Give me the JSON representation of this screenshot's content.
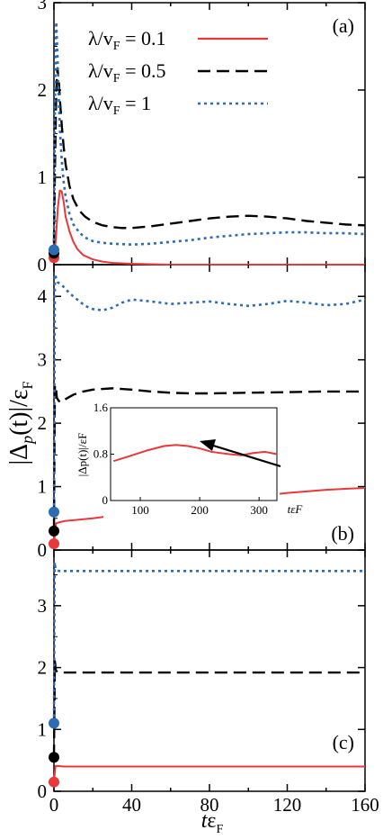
{
  "figure": {
    "ylabel_main": "|Δ",
    "ylabel_sub": "p",
    "ylabel_paren": "(t)|/ε",
    "ylabel_F": "F",
    "xlabel_t": "t",
    "xlabel_eps": "ε",
    "xlabel_F": "F"
  },
  "legend": {
    "items": [
      {
        "prefix": "λ/v",
        "sub": "F",
        "suffix": " = 0.1",
        "color": "#e8383a",
        "dash": "solid"
      },
      {
        "prefix": "λ/v",
        "sub": "F",
        "suffix": " = 0.5",
        "color": "#000000",
        "dash": "dashed"
      },
      {
        "prefix": "λ/v",
        "sub": "F",
        "suffix": " = 1",
        "color": "#2d6cb3",
        "dash": "dotted"
      }
    ]
  },
  "chart_data": [
    {
      "type": "line",
      "panel_label": "(a)",
      "xlim": [
        0,
        160
      ],
      "ylim": [
        0,
        3
      ],
      "yticks": [
        "0",
        "1",
        "2",
        "3"
      ],
      "series": [
        {
          "name": "λ/vF = 0.1",
          "color": "#e8383a",
          "dash": "solid",
          "x": [
            0,
            1,
            2,
            3,
            4,
            5,
            6,
            8,
            10,
            12,
            15,
            20,
            25,
            30,
            40,
            60,
            160
          ],
          "y": [
            0.05,
            0.3,
            0.65,
            0.85,
            0.84,
            0.72,
            0.55,
            0.38,
            0.26,
            0.18,
            0.11,
            0.06,
            0.035,
            0.02,
            0.01,
            0.0,
            0.0
          ]
        },
        {
          "name": "λ/vF = 0.5",
          "color": "#000000",
          "dash": "dashed",
          "x": [
            0,
            0.6,
            1.2,
            1.8,
            2.5,
            3.2,
            4,
            5,
            6,
            8,
            10,
            13,
            16,
            20,
            25,
            30,
            35,
            40,
            50,
            60,
            70,
            80,
            90,
            100,
            110,
            120,
            130,
            140,
            150,
            160
          ],
          "y": [
            0.25,
            1.2,
            2.0,
            2.25,
            2.1,
            1.85,
            1.6,
            1.35,
            1.15,
            0.9,
            0.75,
            0.62,
            0.55,
            0.49,
            0.45,
            0.43,
            0.42,
            0.42,
            0.44,
            0.47,
            0.5,
            0.53,
            0.55,
            0.56,
            0.55,
            0.53,
            0.5,
            0.48,
            0.46,
            0.45
          ]
        },
        {
          "name": "λ/vF = 1",
          "color": "#2d6cb3",
          "dash": "dotted",
          "x": [
            0,
            0.4,
            0.8,
            1.2,
            1.8,
            2.5,
            3.2,
            4,
            5,
            6,
            8,
            10,
            13,
            16,
            20,
            25,
            30,
            40,
            50,
            60,
            70,
            80,
            90,
            100,
            110,
            120,
            130,
            140,
            150,
            160
          ],
          "y": [
            0.2,
            1.5,
            2.5,
            2.78,
            2.4,
            1.9,
            1.5,
            1.2,
            0.95,
            0.78,
            0.58,
            0.46,
            0.37,
            0.31,
            0.27,
            0.25,
            0.24,
            0.23,
            0.24,
            0.26,
            0.28,
            0.31,
            0.33,
            0.35,
            0.36,
            0.37,
            0.37,
            0.36,
            0.36,
            0.35
          ]
        }
      ],
      "markers": [
        {
          "color": "#e8383a",
          "y": 0.08
        },
        {
          "color": "#000000",
          "y": 0.13
        },
        {
          "color": "#2d6cb3",
          "y": 0.17
        }
      ]
    },
    {
      "type": "line",
      "panel_label": "(b)",
      "xlim": [
        0,
        160
      ],
      "ylim": [
        0,
        4.5
      ],
      "yticks": [
        "0",
        "1",
        "2",
        "3",
        "4"
      ],
      "series": [
        {
          "name": "λ/vF = 0.1",
          "color": "#e8383a",
          "dash": "solid",
          "x": [
            0,
            1,
            3,
            6,
            10,
            20,
            40,
            60,
            80,
            100,
            120,
            140,
            160
          ],
          "y": [
            0.1,
            0.42,
            0.44,
            0.46,
            0.47,
            0.5,
            0.58,
            0.66,
            0.75,
            0.83,
            0.9,
            0.95,
            0.98
          ]
        },
        {
          "name": "λ/vF = 0.5",
          "color": "#000000",
          "dash": "dashed",
          "x": [
            0,
            0.5,
            1,
            1.5,
            2.5,
            4,
            6,
            10,
            15,
            20,
            30,
            40,
            50,
            60,
            70,
            80,
            100,
            120,
            140,
            160
          ],
          "y": [
            0.3,
            2.6,
            2.55,
            2.4,
            2.35,
            2.33,
            2.38,
            2.45,
            2.5,
            2.53,
            2.55,
            2.53,
            2.5,
            2.48,
            2.47,
            2.47,
            2.48,
            2.49,
            2.5,
            2.5
          ]
        },
        {
          "name": "λ/vF = 1",
          "color": "#2d6cb3",
          "dash": "dotted",
          "x": [
            0,
            0.5,
            1,
            2,
            3,
            5,
            8,
            12,
            16,
            20,
            25,
            30,
            35,
            40,
            50,
            60,
            70,
            80,
            90,
            100,
            110,
            120,
            130,
            140,
            150,
            160
          ],
          "y": [
            0.6,
            4.35,
            4.3,
            4.22,
            4.2,
            4.15,
            4.05,
            3.95,
            3.85,
            3.8,
            3.78,
            3.82,
            3.9,
            3.95,
            3.92,
            3.88,
            3.9,
            3.92,
            3.88,
            3.85,
            3.88,
            3.93,
            3.9,
            3.86,
            3.88,
            3.95
          ]
        }
      ],
      "markers": [
        {
          "color": "#e8383a",
          "y": 0.1
        },
        {
          "color": "#000000",
          "y": 0.3
        },
        {
          "color": "#2d6cb3",
          "y": 0.6
        }
      ],
      "inset": {
        "type": "line",
        "xlim": [
          50,
          330
        ],
        "ylim": [
          0,
          1.6
        ],
        "xticks": [
          "100",
          "200",
          "300"
        ],
        "yticks": [
          "0",
          "0.8",
          "1.6"
        ],
        "ylabel": "|Δp(t)|/εF",
        "xlabel": "tεF",
        "series": [
          {
            "name": "λ/vF = 0.1",
            "color": "#e8383a",
            "dash": "solid",
            "x": [
              55,
              80,
              110,
              140,
              160,
              180,
              200,
              220,
              250,
              270,
              290,
              310,
              330
            ],
            "y": [
              0.68,
              0.76,
              0.86,
              0.94,
              0.96,
              0.94,
              0.9,
              0.84,
              0.8,
              0.78,
              0.82,
              0.84,
              0.8
            ]
          }
        ]
      }
    },
    {
      "type": "line",
      "panel_label": "(c)",
      "xlim": [
        0,
        160
      ],
      "ylim": [
        0,
        3.9
      ],
      "yticks": [
        "0",
        "1",
        "2",
        "3"
      ],
      "xticks": [
        "0",
        "40",
        "80",
        "120",
        "160"
      ],
      "series": [
        {
          "name": "λ/vF = 0.1",
          "color": "#e8383a",
          "dash": "solid",
          "x": [
            0,
            0.8,
            2,
            5,
            160
          ],
          "y": [
            0.15,
            0.41,
            0.41,
            0.4,
            0.4
          ]
        },
        {
          "name": "λ/vF = 0.5",
          "color": "#000000",
          "dash": "dashed",
          "x": [
            0,
            0.5,
            1,
            2,
            4,
            160
          ],
          "y": [
            0.55,
            2.1,
            1.95,
            1.93,
            1.92,
            1.92
          ]
        },
        {
          "name": "λ/vF = 1",
          "color": "#2d6cb3",
          "dash": "dotted",
          "x": [
            0,
            0.4,
            0.8,
            1.5,
            3,
            160
          ],
          "y": [
            1.1,
            3.7,
            3.6,
            3.57,
            3.56,
            3.56
          ]
        }
      ],
      "markers": [
        {
          "color": "#e8383a",
          "y": 0.15
        },
        {
          "color": "#000000",
          "y": 0.55
        },
        {
          "color": "#2d6cb3",
          "y": 1.1
        }
      ]
    }
  ]
}
